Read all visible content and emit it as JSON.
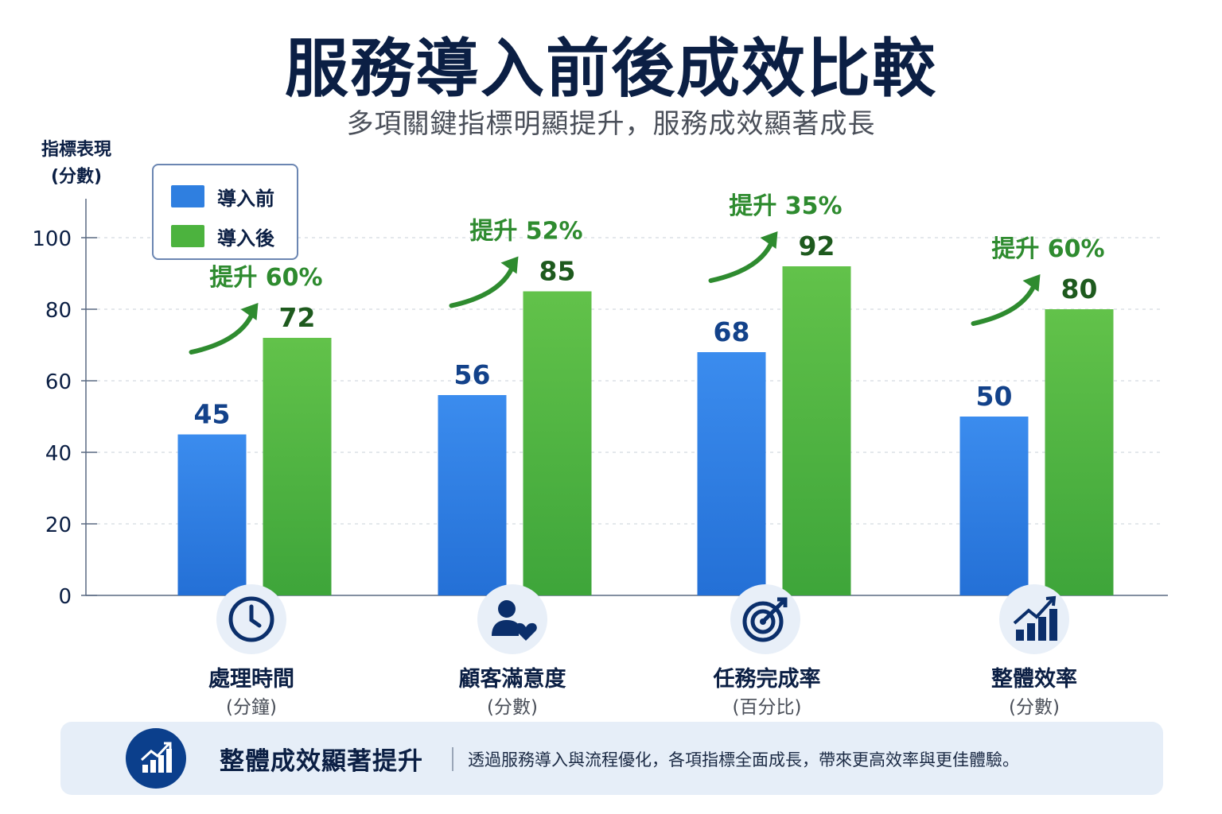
{
  "header": {
    "title": "服務導入前後成效比較",
    "subtitle": "多項關鍵指標明顯提升，服務成效顯著成長"
  },
  "chart_data": {
    "type": "bar",
    "title": "服務導入前後成效比較",
    "subtitle": "多項關鍵指標明顯提升，服務成效顯著成長",
    "ylabel_line1": "指標表現",
    "ylabel_line2": "(分數)",
    "ylim": [
      0,
      100
    ],
    "yticks": [
      0,
      20,
      40,
      60,
      80,
      100
    ],
    "grid": true,
    "legend_position": "top-left",
    "categories": [
      {
        "label": "處理時間",
        "sublabel": "(分鐘)",
        "icon": "clock-icon"
      },
      {
        "label": "顧客滿意度",
        "sublabel": "(分數)",
        "icon": "customer-heart-icon"
      },
      {
        "label": "任務完成率",
        "sublabel": "(百分比)",
        "icon": "target-icon"
      },
      {
        "label": "整體效率",
        "sublabel": "(分數)",
        "icon": "growth-bars-icon"
      }
    ],
    "series": [
      {
        "name": "導入前",
        "color": "#2f7fe0",
        "values": [
          45,
          56,
          68,
          50
        ]
      },
      {
        "name": "導入後",
        "color": "#4cb33e",
        "values": [
          72,
          85,
          92,
          80
        ]
      }
    ],
    "data_labels_before": [
      "45",
      "56",
      "68",
      "50"
    ],
    "data_labels_after": [
      "72",
      "85",
      "92",
      "80"
    ],
    "annotations": [
      "提升 60%",
      "提升 52%",
      "提升 35%",
      "提升 60%"
    ],
    "colors": {
      "before": "#2f7fe0",
      "after": "#4cb33e",
      "arrow": "#2e8b2f",
      "before_label": "#13428a",
      "after_label": "#1e5a1e"
    }
  },
  "banner": {
    "icon": "growth-bars-icon",
    "title": "整體成效顯著提升",
    "text": "透過服務導入與流程優化，各項指標全面成長，帶來更高效率與更佳體驗。"
  }
}
